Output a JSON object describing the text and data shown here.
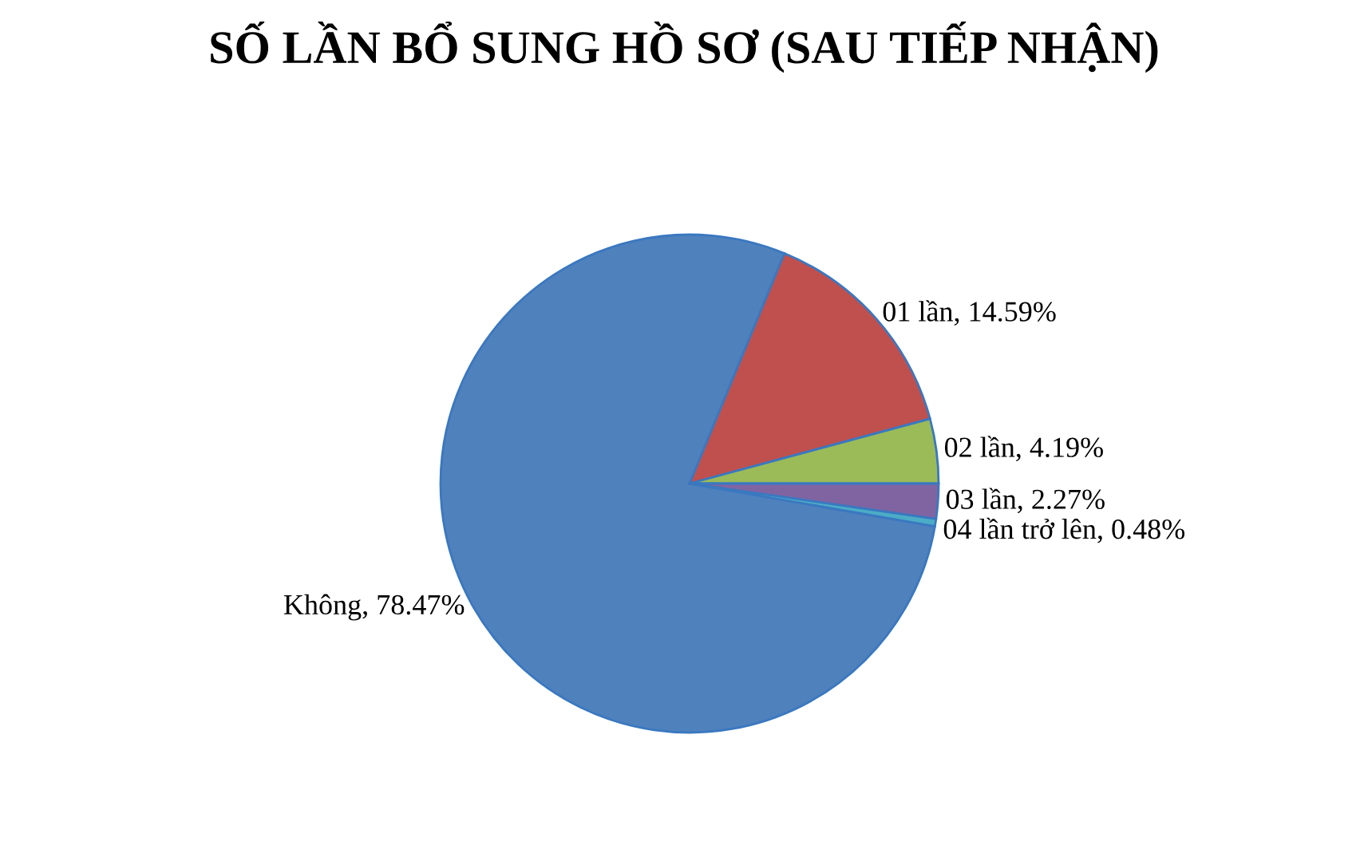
{
  "chart_data": {
    "type": "pie",
    "title": "SỐ LẦN BỔ SUNG HỒ SƠ (SAU TIẾP NHẬN)",
    "categories": [
      "Không",
      "01 lần",
      "02 lần",
      "03 lần",
      "04 lần trở lên"
    ],
    "values": [
      78.47,
      14.59,
      4.19,
      2.27,
      0.48
    ],
    "value_labels": [
      "78.47%",
      "14.59%",
      "4.19%",
      "2.27%",
      "0.48%"
    ],
    "colors": [
      "#4f81bd",
      "#c0504d",
      "#9bbb59",
      "#8064a2",
      "#4bacc6"
    ],
    "legend": false
  }
}
